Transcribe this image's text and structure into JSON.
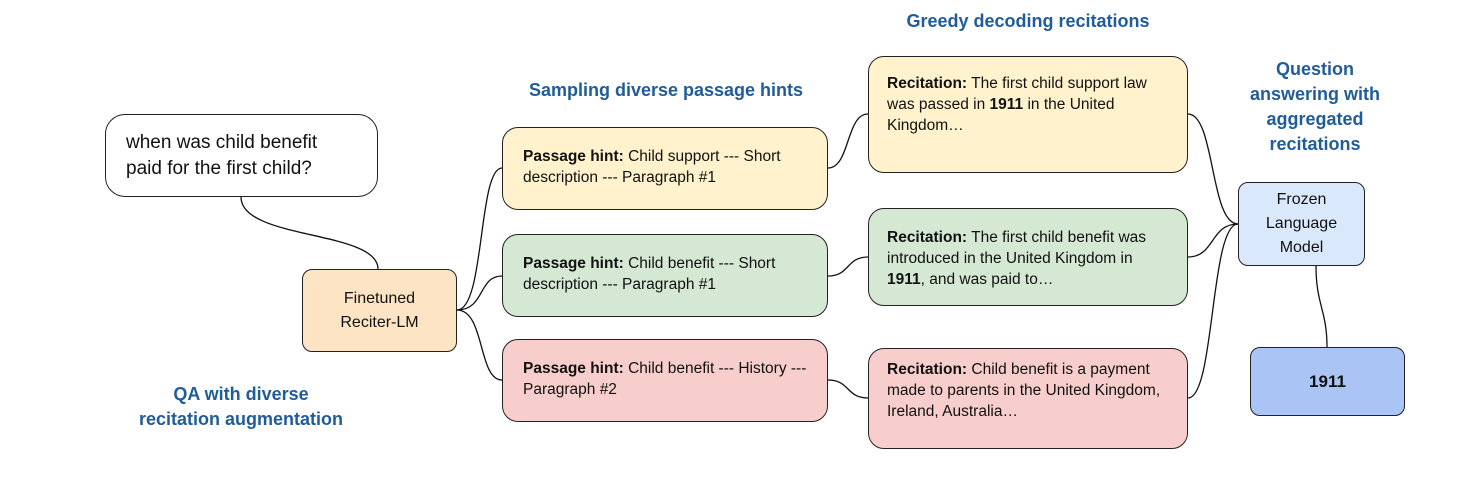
{
  "headings": {
    "greedy": "Greedy decoding recitations",
    "sampling": "Sampling diverse passage hints",
    "qa_aggregated": [
      "Question",
      "answering with",
      "aggregated",
      "recitations"
    ],
    "qa_diverse": [
      "QA with diverse",
      "recitation augmentation"
    ]
  },
  "question": {
    "text": "when was child benefit paid for the first child?"
  },
  "reciter": {
    "lines": [
      "Finetuned",
      "Reciter-LM"
    ]
  },
  "hints": [
    {
      "label": "Passage hint:",
      "text": " Child support --- Short description --- Paragraph #1",
      "color": "#fff2cc"
    },
    {
      "label": "Passage hint:",
      "text": " Child benefit --- Short description --- Paragraph #1",
      "color": "#d5e8d4"
    },
    {
      "label": "Passage hint:",
      "text": " Child benefit --- History --- Paragraph #2",
      "color": "#f8cecc"
    }
  ],
  "recitations": [
    {
      "label": "Recitation:",
      "before": " The first child support law was passed in ",
      "bold": "1911",
      "after": " in the United Kingdom…",
      "color": "#fff2cc"
    },
    {
      "label": "Recitation:",
      "before": " The first child benefit was introduced in the United Kingdom in ",
      "bold": "1911",
      "after": ", and was paid to…",
      "color": "#d5e8d4"
    },
    {
      "label": "Recitation:",
      "before": " Child benefit is a payment made to parents in the United Kingdom, Ireland, Australia…",
      "bold": "",
      "after": "",
      "color": "#f8cecc"
    }
  ],
  "frozen_lm": {
    "lines": [
      "Frozen",
      "Language",
      "Model"
    ],
    "color": "#dae8fc"
  },
  "answer": {
    "text": "1911",
    "color": "#a9c4f5"
  },
  "colors": {
    "heading": "#1f5c99",
    "reciter": "#fce4c4"
  }
}
